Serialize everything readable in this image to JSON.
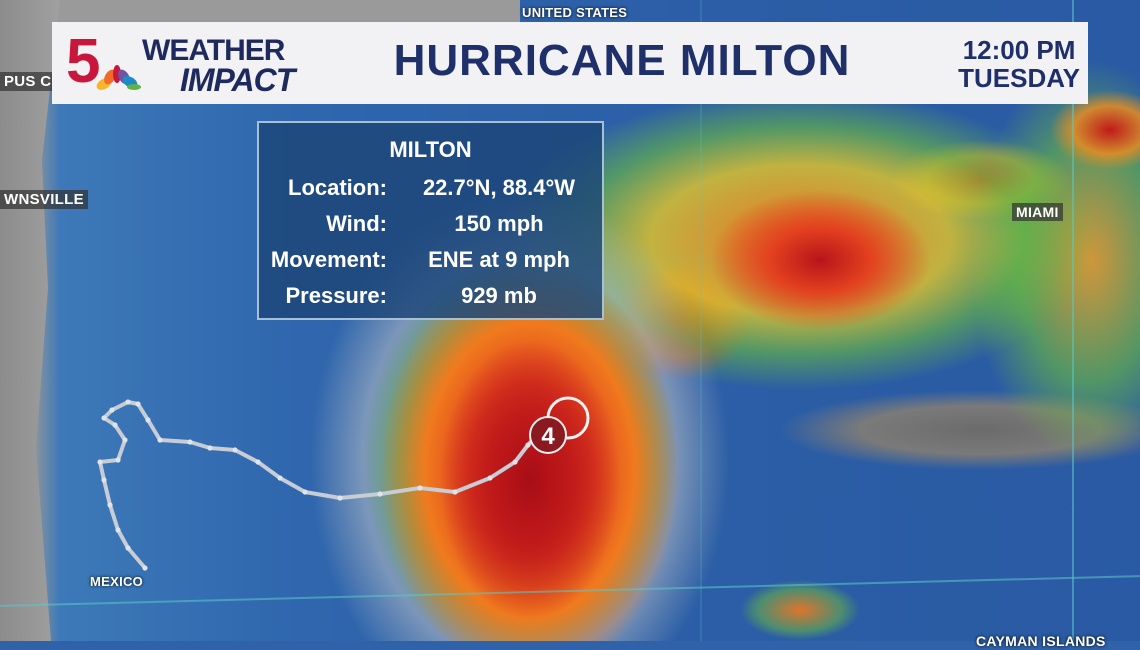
{
  "header": {
    "station_logo": "5",
    "brand_line1": "WEATHER",
    "brand_line2": "IMPACT",
    "title": "HURRICANE MILTON",
    "time": "12:00 PM",
    "day": "TUESDAY"
  },
  "storm_info": {
    "name": "MILTON",
    "rows": [
      {
        "label": "Location:",
        "value": "22.7°N, 88.4°W"
      },
      {
        "label": "Wind:",
        "value": "150 mph"
      },
      {
        "label": "Movement:",
        "value": "ENE at 9 mph"
      },
      {
        "label": "Pressure:",
        "value": "929 mb"
      }
    ]
  },
  "storm_marker": {
    "category": "4",
    "icon": "hurricane-symbol-icon"
  },
  "map_labels": {
    "united_states": "UNITED STATES",
    "corpus_christi": "PUS CH",
    "brownsville": "WNSVILLE",
    "miami": "MIAMI",
    "mexico": "MEXICO",
    "cayman": "CAYMAN ISLANDS"
  },
  "colors": {
    "brand_red": "#c8173b",
    "navy": "#1e2f6a",
    "track": "#c8ccd4"
  }
}
